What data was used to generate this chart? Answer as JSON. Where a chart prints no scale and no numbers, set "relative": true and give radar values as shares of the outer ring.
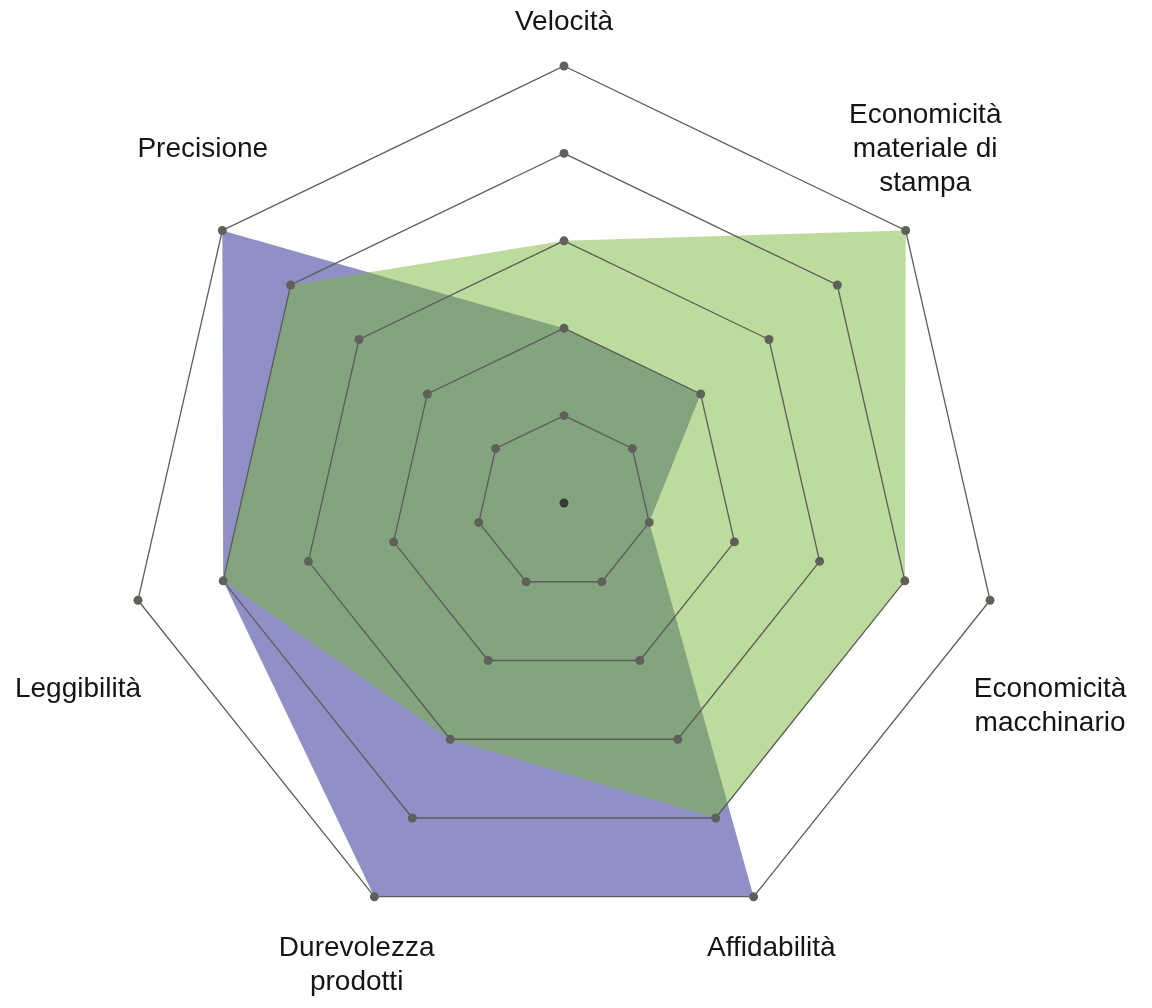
{
  "chart_data": {
    "type": "radar",
    "relative": true,
    "grid": true,
    "categories": [
      "Velocità",
      "Economicità materiale di stampa",
      "Economicità macchinario",
      "Affidabilità",
      "Durevolezza prodotti",
      "Leggibilità",
      "Precisione"
    ],
    "series": [
      {
        "color": "#8f91c6",
        "values": [
          0.4,
          0.4,
          0.2,
          1,
          1,
          0.8,
          1
        ]
      },
      {
        "color": "#bcdb9c",
        "values": [
          0.6,
          1,
          0.8,
          0.8,
          0.6,
          0.8,
          0.8
        ]
      }
    ]
  }
}
